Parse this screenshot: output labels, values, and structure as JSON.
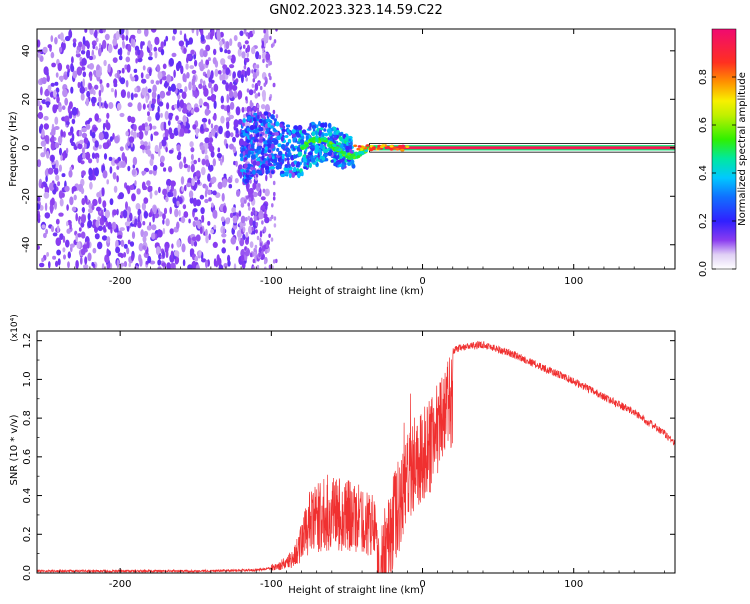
{
  "title": "GN02.2023.323.14.59.C22",
  "chart_data": [
    {
      "type": "heatmap",
      "xlabel": "Height of straight line (km)",
      "ylabel": "Frequency (Hz)",
      "xlim": [
        -255,
        167
      ],
      "ylim": [
        -50,
        49
      ],
      "xticks": [
        -200,
        -100,
        0,
        100
      ],
      "yticks": [
        -40,
        -20,
        0,
        20,
        40
      ],
      "colorbar": {
        "label": "Normalized spectral amplitude",
        "range": [
          0.0,
          1.0
        ],
        "ticks": [
          0.0,
          0.2,
          0.4,
          0.6,
          0.8
        ],
        "colors": [
          "#e8dcf5",
          "#7a2cf0",
          "#2020ff",
          "#00c8ff",
          "#00e060",
          "#60f000",
          "#f8f000",
          "#ff8000",
          "#ff2020",
          "#f01070"
        ]
      },
      "features": [
        {
          "name": "",
          "x_range": [
            -255,
            -120
          ],
          "freq_range": [
            -50,
            49
          ],
          "amplitude": 0.12
        },
        {
          "name": "",
          "x_range": [
            -120,
            -45
          ],
          "freq_range": [
            -15,
            10
          ],
          "amplitude": 0.3
        },
        {
          "name": "",
          "x_range": [
            -45,
            167
          ],
          "freq_center": 0,
          "amplitude": 0.95
        }
      ]
    },
    {
      "type": "line",
      "xlabel": "Height of straight line (km)",
      "ylabel": "SNR (10 * v/v)",
      "ylabel_multiplier": "(x10⁴)",
      "xlim": [
        -255,
        167
      ],
      "ylim": [
        0.0,
        1.25
      ],
      "xticks": [
        -200,
        -100,
        0,
        100
      ],
      "yticks": [
        "0.0",
        "0.2",
        "0.4",
        "0.6",
        "0.8",
        "1.0",
        "1.2"
      ],
      "color": "#f03030",
      "series": [
        {
          "name": "",
          "x": [
            -255,
            -200,
            -150,
            -110,
            -95,
            -85,
            -75,
            -60,
            -45,
            -35,
            -28,
            -22,
            -15,
            -10,
            -5,
            0,
            5,
            10,
            15,
            20,
            30,
            40,
            60,
            80,
            100,
            120,
            140,
            160,
            167
          ],
          "y": [
            0.01,
            0.01,
            0.01,
            0.015,
            0.03,
            0.07,
            0.22,
            0.28,
            0.25,
            0.22,
            0.2,
            0.45,
            0.6,
            0.75,
            0.82,
            0.85,
            0.9,
            1.0,
            1.1,
            1.15,
            1.17,
            1.18,
            1.13,
            1.06,
            0.99,
            0.91,
            0.83,
            0.72,
            0.67
          ]
        }
      ]
    }
  ]
}
